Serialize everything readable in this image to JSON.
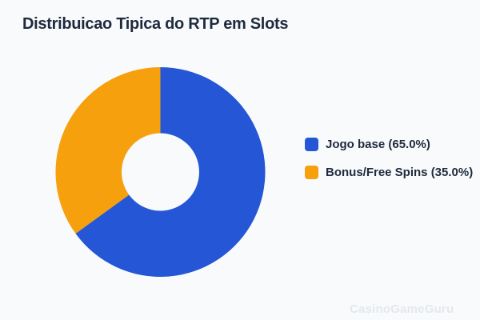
{
  "page": {
    "background": "#F8FAFC"
  },
  "title": {
    "text": "Distribuicao Tipica do RTP em Slots",
    "color": "#1F2A3C"
  },
  "chart_data": {
    "type": "pie",
    "subtype": "donut",
    "title": "Distribuicao Tipica do RTP em Slots",
    "labels": [
      "Jogo base",
      "Bonus/Free Spins"
    ],
    "values": [
      65.0,
      35.0
    ],
    "unit": "%",
    "colors": [
      "#2456D6",
      "#F5A00C"
    ],
    "start_angle_deg": 90,
    "direction": "clockwise",
    "inner_radius_ratio": 0.37,
    "legend": {
      "position": "right",
      "labels": [
        "Jogo base (65.0%)",
        "Bonus/Free Spins (35.0%)"
      ],
      "text_color": "#1F2A3C"
    }
  },
  "watermark": {
    "text": "CasinoGameGuru",
    "color": "#E4E8ED"
  }
}
